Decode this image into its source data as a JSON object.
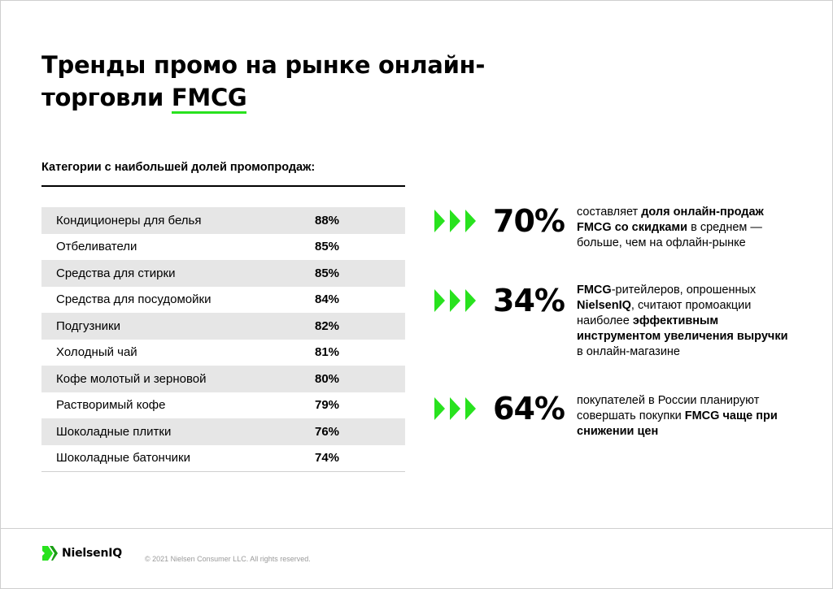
{
  "title": {
    "line1": "Тренды промо на рынке онлайн-",
    "line2_plain": "торговли ",
    "line2_highlight": "FMCG"
  },
  "categories": {
    "heading": "Категории с наибольшей долей промопродаж:",
    "rows": [
      {
        "name": "Кондиционеры для белья",
        "value": "88%"
      },
      {
        "name": "Отбеливатели",
        "value": "85%"
      },
      {
        "name": "Средства для стирки",
        "value": "85%"
      },
      {
        "name": "Средства для посудомойки",
        "value": "84%"
      },
      {
        "name": "Подгузники",
        "value": "82%"
      },
      {
        "name": "Холодный чай",
        "value": "81%"
      },
      {
        "name": "Кофе молотый и зерновой",
        "value": "80%"
      },
      {
        "name": "Растворимый кофе",
        "value": "79%"
      },
      {
        "name": "Шоколадные плитки",
        "value": "76%"
      },
      {
        "name": "Шоколадные батончики",
        "value": "74%"
      }
    ]
  },
  "stats": [
    {
      "value": "70%",
      "parts": [
        {
          "t": "составляет ",
          "b": false
        },
        {
          "t": "доля онлайн-продаж FMCG со скидками",
          "b": true
        },
        {
          "t": " в среднем — больше, чем на офлайн-рынке",
          "b": false
        }
      ]
    },
    {
      "value": "34%",
      "parts": [
        {
          "t": "FMCG",
          "b": true
        },
        {
          "t": "-ритейлеров, опрошенных ",
          "b": false
        },
        {
          "t": "NielsenIQ",
          "b": true
        },
        {
          "t": ", считают промоакции наиболее ",
          "b": false
        },
        {
          "t": "эффективным инструментом увеличения выручки",
          "b": true
        },
        {
          "t": " в онлайн-магазине",
          "b": false
        }
      ]
    },
    {
      "value": "64%",
      "parts": [
        {
          "t": "покупателей в России планируют совершать покупки ",
          "b": false
        },
        {
          "t": "FMCG чаще при снижении цен",
          "b": true
        }
      ]
    }
  ],
  "footer": {
    "brand": "NielsenIQ",
    "copyright": "© 2021 Nielsen Consumer LLC. All rights reserved."
  },
  "colors": {
    "accent_green": "#28e21e",
    "row_gray": "#e6e6e6"
  },
  "icons": [
    "triple-chevron-arrow-icon",
    "nielseniq-logo-icon"
  ]
}
